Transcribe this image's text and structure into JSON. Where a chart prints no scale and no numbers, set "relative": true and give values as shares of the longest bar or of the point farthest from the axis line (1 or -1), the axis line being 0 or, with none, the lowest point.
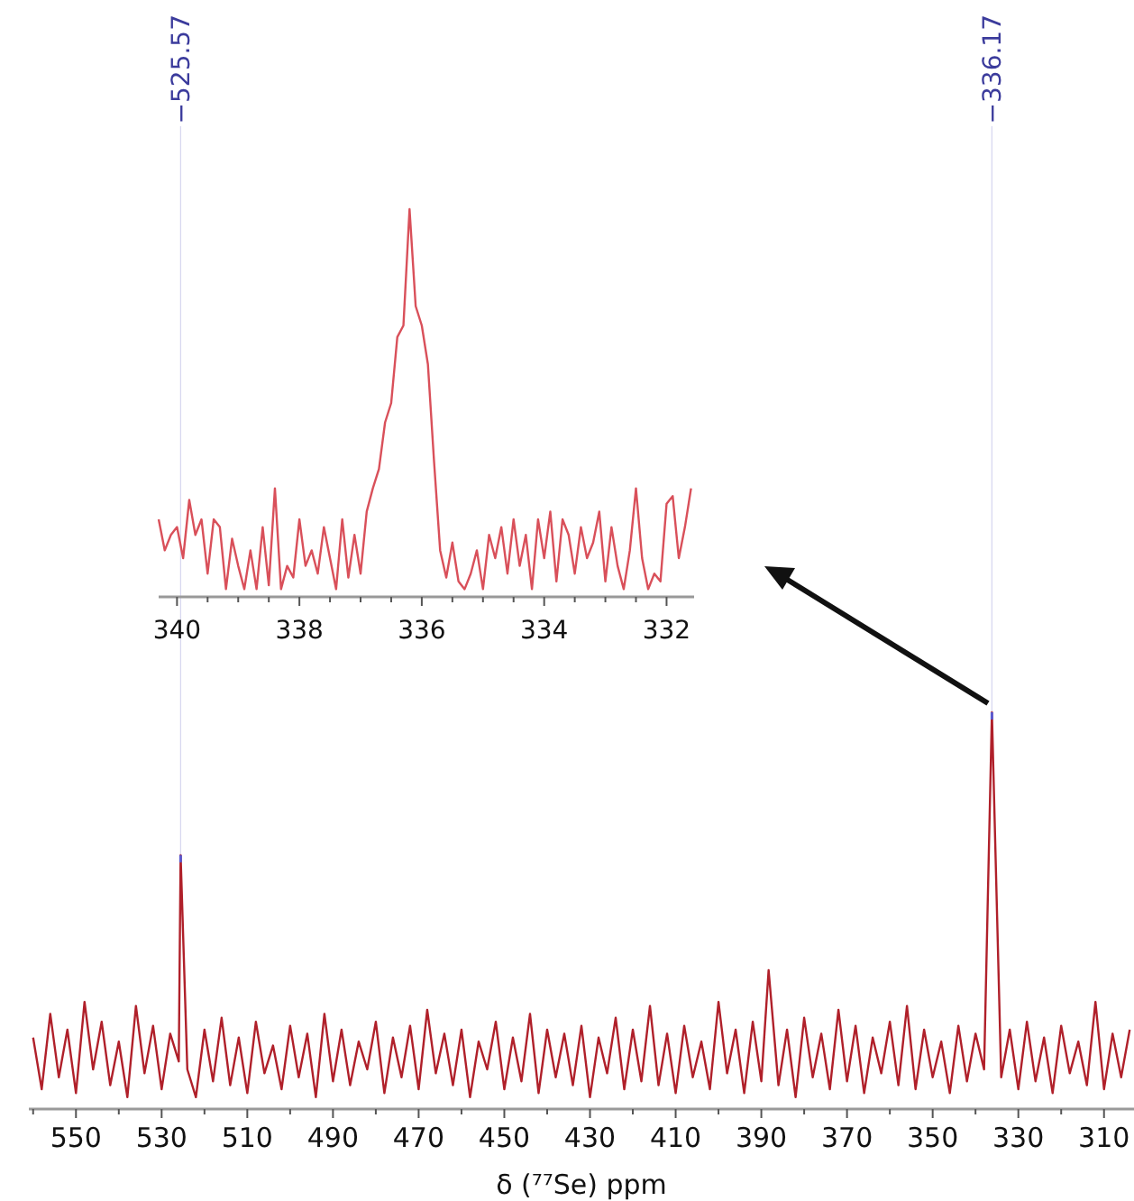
{
  "chart_data": [
    {
      "type": "line",
      "relative": true,
      "xlabel": "δ (⁷⁷Se) ppm",
      "xlim": [
        561,
        303
      ],
      "xticks": [
        {
          "value": 560,
          "label": null
        },
        550,
        {
          "value": 540,
          "label": null
        },
        530,
        {
          "value": 520,
          "label": null
        },
        510,
        {
          "value": 500,
          "label": null
        },
        490,
        {
          "value": 480,
          "label": null
        },
        470,
        {
          "value": 460,
          "label": null
        },
        450,
        {
          "value": 440,
          "label": null
        },
        430,
        {
          "value": 420,
          "label": null
        },
        410,
        {
          "value": 400,
          "label": null
        },
        390,
        {
          "value": 380,
          "label": null
        },
        370,
        {
          "value": 360,
          "label": null
        },
        350,
        {
          "value": 340,
          "label": null
        },
        330,
        {
          "value": 320,
          "label": null
        },
        310
      ],
      "annotations": [
        {
          "text": "−525.57",
          "x": 525.57,
          "y": 0.64
        },
        {
          "text": "−336.17",
          "x": 336.17,
          "y": 1
        }
      ],
      "series": [
        {
          "color": "#b0202a",
          "x": [
            560,
            558,
            556,
            554,
            552,
            550,
            548,
            546,
            544,
            542,
            540,
            538,
            536,
            534,
            532,
            530,
            528,
            526,
            525.57,
            524,
            522,
            520,
            518,
            516,
            514,
            512,
            510,
            508,
            506,
            504,
            502,
            500,
            498,
            496,
            494,
            492,
            490,
            488,
            486,
            484,
            482,
            480,
            478,
            476,
            474,
            472,
            470,
            468,
            466,
            464,
            462,
            460,
            458,
            456,
            454,
            452,
            450,
            448,
            446,
            444,
            442,
            440,
            438,
            436,
            434,
            432,
            430,
            428,
            426,
            424,
            422,
            420,
            418,
            416,
            414,
            412,
            410,
            408,
            406,
            404,
            402,
            400,
            398,
            396,
            394,
            392,
            390,
            388.3,
            386,
            384,
            382,
            380,
            378,
            376,
            374,
            372,
            370,
            368,
            366,
            364,
            362,
            360,
            358,
            356,
            354,
            352,
            350,
            348,
            346,
            344,
            342,
            340,
            338,
            336.17,
            334,
            332,
            330,
            328,
            326,
            324,
            322,
            320,
            318,
            316,
            314,
            312,
            310,
            308,
            306,
            304
          ],
          "values": [
            0.18,
            0.05,
            0.24,
            0.08,
            0.2,
            0.04,
            0.27,
            0.1,
            0.22,
            0.06,
            0.17,
            0.03,
            0.26,
            0.09,
            0.21,
            0.05,
            0.19,
            0.12,
            0.64,
            0.1,
            0.03,
            0.2,
            0.07,
            0.23,
            0.06,
            0.18,
            0.04,
            0.22,
            0.09,
            0.16,
            0.05,
            0.21,
            0.08,
            0.19,
            0.03,
            0.24,
            0.07,
            0.2,
            0.06,
            0.17,
            0.1,
            0.22,
            0.04,
            0.18,
            0.08,
            0.21,
            0.05,
            0.25,
            0.09,
            0.19,
            0.06,
            0.2,
            0.03,
            0.17,
            0.1,
            0.22,
            0.05,
            0.18,
            0.07,
            0.24,
            0.04,
            0.2,
            0.08,
            0.19,
            0.06,
            0.21,
            0.03,
            0.18,
            0.09,
            0.23,
            0.05,
            0.2,
            0.07,
            0.26,
            0.06,
            0.19,
            0.04,
            0.21,
            0.08,
            0.17,
            0.05,
            0.27,
            0.09,
            0.2,
            0.04,
            0.22,
            0.07,
            0.35,
            0.06,
            0.2,
            0.03,
            0.23,
            0.08,
            0.19,
            0.05,
            0.25,
            0.07,
            0.21,
            0.04,
            0.18,
            0.09,
            0.22,
            0.06,
            0.26,
            0.05,
            0.2,
            0.08,
            0.17,
            0.04,
            0.21,
            0.07,
            0.19,
            0.1,
            1,
            0.08,
            0.2,
            0.05,
            0.22,
            0.07,
            0.18,
            0.04,
            0.21,
            0.09,
            0.17,
            0.06,
            0.27,
            0.05,
            0.19,
            0.08,
            0.2
          ]
        }
      ]
    },
    {
      "type": "line",
      "relative": true,
      "xlim": [
        340.3,
        331.55
      ],
      "xticks": [
        340,
        {
          "value": 339.5,
          "label": null
        },
        {
          "value": 339,
          "label": null
        },
        {
          "value": 338.5,
          "label": null
        },
        338,
        {
          "value": 337.5,
          "label": null
        },
        {
          "value": 337,
          "label": null
        },
        {
          "value": 336.5,
          "label": null
        },
        336,
        {
          "value": 335.5,
          "label": null
        },
        {
          "value": 335,
          "label": null
        },
        {
          "value": 334.5,
          "label": null
        },
        334,
        {
          "value": 333.5,
          "label": null
        },
        {
          "value": 333,
          "label": null
        },
        {
          "value": 332.5,
          "label": null
        },
        332
      ],
      "series": [
        {
          "color": "#d9505a",
          "x": [
            340.3,
            340.2,
            340.1,
            340,
            339.9,
            339.8,
            339.7,
            339.6,
            339.5,
            339.4,
            339.3,
            339.2,
            339.1,
            339,
            338.9,
            338.8,
            338.7,
            338.6,
            338.5,
            338.4,
            338.3,
            338.2,
            338.1,
            338,
            337.9,
            337.8,
            337.7,
            337.6,
            337.5,
            337.4,
            337.3,
            337.2,
            337.1,
            337,
            336.9,
            336.8,
            336.7,
            336.6,
            336.5,
            336.4,
            336.3,
            336.2,
            336.1,
            336,
            335.9,
            335.8,
            335.7,
            335.6,
            335.5,
            335.4,
            335.3,
            335.2,
            335.1,
            335,
            334.9,
            334.8,
            334.7,
            334.6,
            334.5,
            334.4,
            334.3,
            334.2,
            334.1,
            334,
            333.9,
            333.8,
            333.7,
            333.6,
            333.5,
            333.4,
            333.3,
            333.2,
            333.1,
            333,
            332.9,
            332.8,
            332.7,
            332.6,
            332.5,
            332.4,
            332.3,
            332.2,
            332.1,
            332,
            331.9,
            331.8,
            331.7,
            331.6
          ],
          "values": [
            0.2,
            0.12,
            0.16,
            0.18,
            0.1,
            0.25,
            0.16,
            0.2,
            0.06,
            0.2,
            0.18,
            0.02,
            0.15,
            0.08,
            0.02,
            0.12,
            0.02,
            0.18,
            0.03,
            0.28,
            0.02,
            0.08,
            0.05,
            0.2,
            0.08,
            0.12,
            0.06,
            0.18,
            0.1,
            0.02,
            0.2,
            0.05,
            0.16,
            0.06,
            0.22,
            0.28,
            0.33,
            0.45,
            0.5,
            0.67,
            0.7,
            1,
            0.75,
            0.7,
            0.6,
            0.35,
            0.12,
            0.05,
            0.14,
            0.04,
            0.02,
            0.06,
            0.12,
            0.02,
            0.16,
            0.1,
            0.18,
            0.06,
            0.2,
            0.08,
            0.16,
            0.02,
            0.2,
            0.1,
            0.22,
            0.04,
            0.2,
            0.16,
            0.06,
            0.18,
            0.1,
            0.14,
            0.22,
            0.04,
            0.18,
            0.08,
            0.02,
            0.12,
            0.28,
            0.1,
            0.02,
            0.06,
            0.04,
            0.24,
            0.26,
            0.1,
            0.18,
            0.28
          ]
        }
      ]
    }
  ]
}
